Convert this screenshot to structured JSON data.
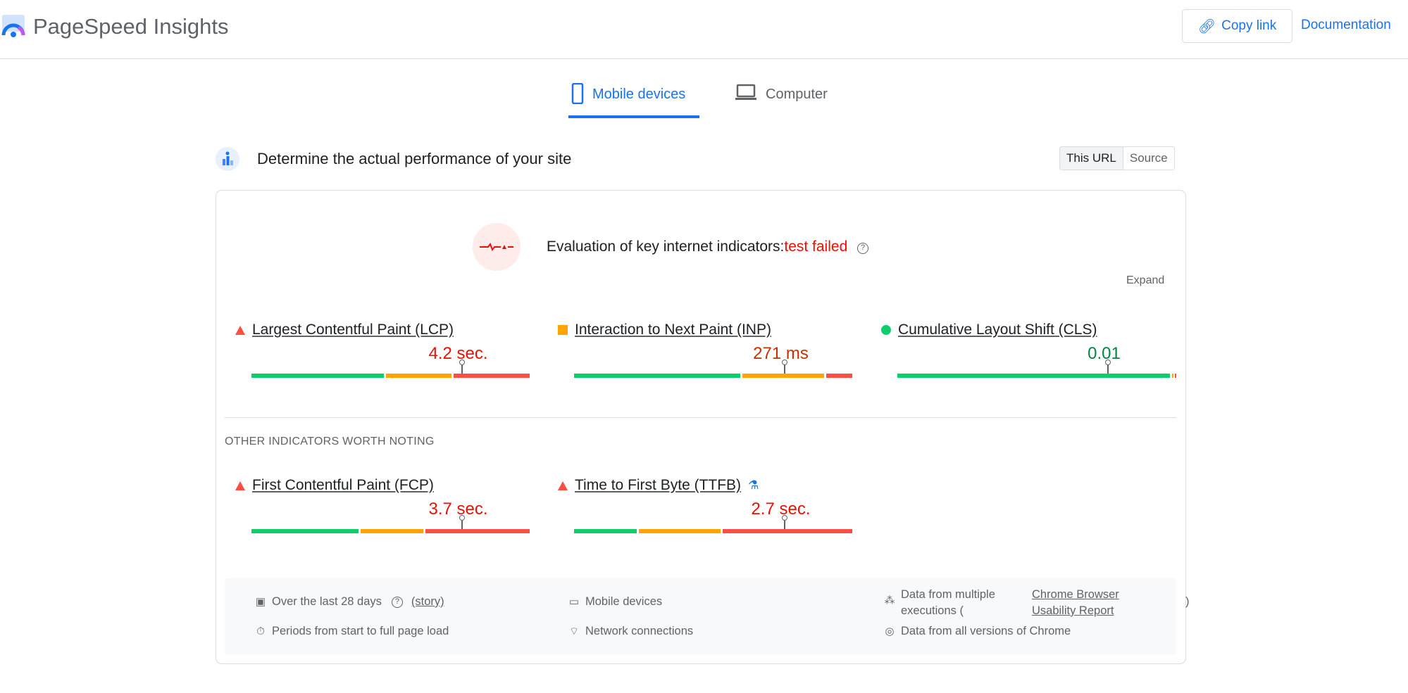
{
  "header": {
    "title": "PageSpeed Insights",
    "copy_link": "Copy link",
    "documentation": "Documentation"
  },
  "tabs": [
    {
      "label": "Mobile devices",
      "active": true
    },
    {
      "label": "Computer",
      "active": false
    }
  ],
  "section": {
    "title": "Determine the actual performance of your site",
    "toggle": [
      "This URL",
      "Source"
    ]
  },
  "evaluation": {
    "prefix": "Evaluation of key internet indicators:",
    "result": "test failed",
    "expand": "Expand"
  },
  "colors": {
    "good": "#0cce6b",
    "average": "#ffa400",
    "poor": "#ff4e42",
    "fail_text": "#eb0f00",
    "avg_text": "#c33300",
    "good_text": "#018642"
  },
  "core_metrics": [
    {
      "label": "Largest Contentful Paint (LCP)",
      "value": "4.2 sec.",
      "status": "poor",
      "distribution": [
        48,
        24,
        28
      ],
      "percentile_marker": 75
    },
    {
      "label": "Interaction to Next Paint (INP)",
      "value": "271 ms",
      "status": "average",
      "distribution": [
        60,
        30,
        10
      ],
      "percentile_marker": 75
    },
    {
      "label": "Cumulative Layout Shift (CLS)",
      "value": "0.01",
      "status": "good",
      "distribution": [
        98,
        1,
        1
      ],
      "percentile_marker": 75
    }
  ],
  "other_title": "OTHER INDICATORS WORTH NOTING",
  "other_metrics": [
    {
      "label": "First Contentful Paint (FCP)",
      "value": "3.7 sec.",
      "status": "poor",
      "distribution": [
        39,
        23,
        38
      ],
      "percentile_marker": 75
    },
    {
      "label": "Time to First Byte (TTFB)",
      "value": "2.7 sec.",
      "status": "poor",
      "distribution": [
        23,
        30,
        47
      ],
      "percentile_marker": 75,
      "experimental": true
    }
  ],
  "footer": {
    "period": "Over the last 28 days",
    "story": "(story)",
    "load": "Periods from start to full page load",
    "devices": "Mobile devices",
    "network": "Network connections",
    "multi_prefix": "Data from multiple executions (",
    "crux": "Chrome Browser Usability Report",
    "multi_suffix": ")",
    "versions": "Data from all versions of Chrome"
  }
}
